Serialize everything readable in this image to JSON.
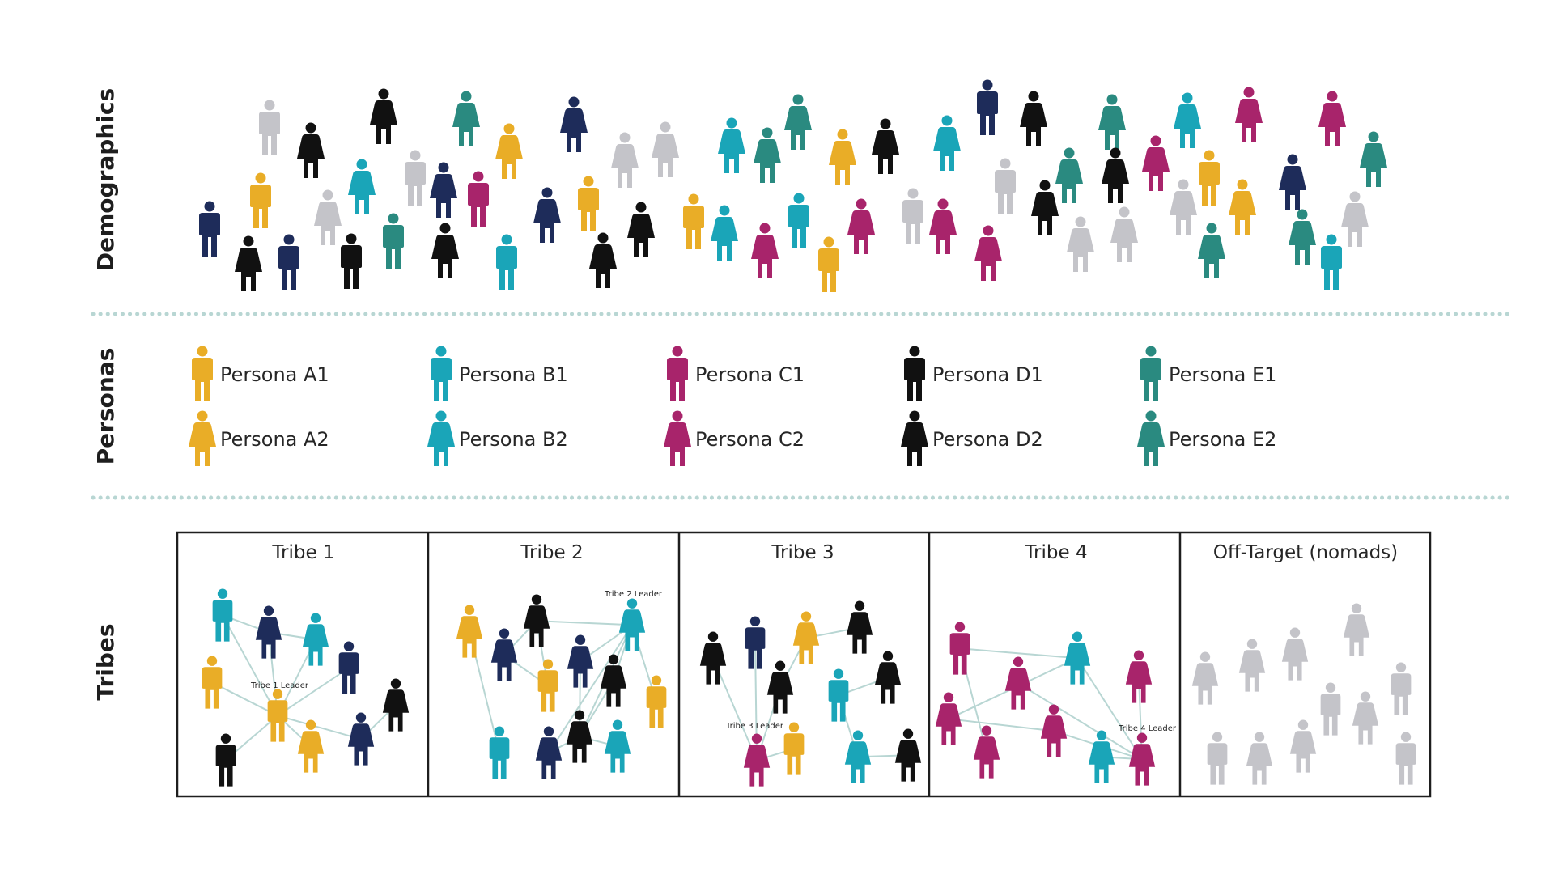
{
  "colors": {
    "yellow": "#e9ad27",
    "cyan": "#1aa5b8",
    "magenta": "#a8246b",
    "black": "#111111",
    "teal": "#2a8a80",
    "navy": "#1e2c5a",
    "gray": "#c4c4c9",
    "divider": "#b8d6d3",
    "link": "#b8d6d3",
    "frame": "#1e1e1e"
  },
  "sections": {
    "demographics": "Demographics",
    "personas": "Personas",
    "tribes": "Tribes"
  },
  "personas": [
    {
      "label": "Persona A1",
      "color": "yellow",
      "type": "m"
    },
    {
      "label": "Persona A2",
      "color": "yellow",
      "type": "f"
    },
    {
      "label": "Persona B1",
      "color": "cyan",
      "type": "m"
    },
    {
      "label": "Persona B2",
      "color": "cyan",
      "type": "f"
    },
    {
      "label": "Persona C1",
      "color": "magenta",
      "type": "m"
    },
    {
      "label": "Persona C2",
      "color": "magenta",
      "type": "f"
    },
    {
      "label": "Persona D1",
      "color": "black",
      "type": "m"
    },
    {
      "label": "Persona D2",
      "color": "black",
      "type": "f"
    },
    {
      "label": "Persona E1",
      "color": "teal",
      "type": "m"
    },
    {
      "label": "Persona E2",
      "color": "teal",
      "type": "f"
    }
  ],
  "tribes": [
    {
      "title": "Tribe 1",
      "leader_label": "Tribe 1 Leader"
    },
    {
      "title": "Tribe 2",
      "leader_label": "Tribe 2 Leader"
    },
    {
      "title": "Tribe 3",
      "leader_label": "Tribe 3 Leader"
    },
    {
      "title": "Tribe 4",
      "leader_label": "Tribe 4 Leader"
    },
    {
      "title": "Off-Target (nomads)",
      "leader_label": ""
    }
  ]
}
